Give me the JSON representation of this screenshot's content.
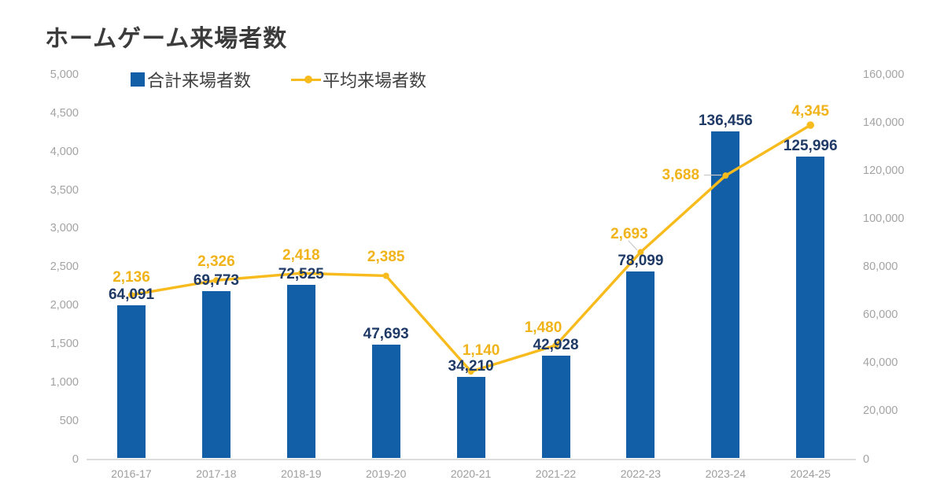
{
  "title": "ホームゲーム来場者数",
  "legend": {
    "total_label": "合計来場者数",
    "average_label": "平均来場者数"
  },
  "colors": {
    "bar": "#135fa7",
    "bar_label_text": "#1f3a66",
    "line": "#f8bb1d",
    "line_label_text": "#f0b31a",
    "axis_text": "#a3a3a3",
    "title_text": "#3b3b3b",
    "baseline": "#dcdcdc",
    "leader_line": "#c8c8c8",
    "background": "#ffffff"
  },
  "chart_data": {
    "type": "combo",
    "title": "ホームゲーム来場者数",
    "categories": [
      "2016-17",
      "2017-18",
      "2018-19",
      "2019-20",
      "2020-21",
      "2021-22",
      "2022-23",
      "2023-24",
      "2024-25"
    ],
    "series": [
      {
        "name": "合計来場者数",
        "type": "bar",
        "axis": "right",
        "values": [
          64091,
          69773,
          72525,
          47693,
          34210,
          42928,
          78099,
          136456,
          125996
        ],
        "labels": [
          "64,091",
          "69,773",
          "72,525",
          "47,693",
          "34,210",
          "42,928",
          "78,099",
          "136,456",
          "125,996"
        ]
      },
      {
        "name": "平均来場者数",
        "type": "line",
        "axis": "left",
        "values": [
          2136,
          2326,
          2418,
          2385,
          1140,
          1480,
          2693,
          3688,
          4345
        ],
        "labels": [
          "2,136",
          "2,326",
          "2,418",
          "2,385",
          "1,140",
          "1,480",
          "2,693",
          "3,688",
          "4,345"
        ]
      }
    ],
    "left_axis": {
      "min": 0,
      "max": 5000,
      "step": 500,
      "tick_labels": [
        "0",
        "500",
        "1,000",
        "1,500",
        "2,000",
        "2,500",
        "3,000",
        "3,500",
        "4,000",
        "4,500",
        "5,000"
      ]
    },
    "right_axis": {
      "min": 0,
      "max": 160000,
      "step": 20000,
      "tick_labels": [
        "0",
        "20,000",
        "40,000",
        "60,000",
        "80,000",
        "100,000",
        "120,000",
        "140,000",
        "160,000"
      ]
    },
    "grid": false,
    "legend_position": "top"
  }
}
